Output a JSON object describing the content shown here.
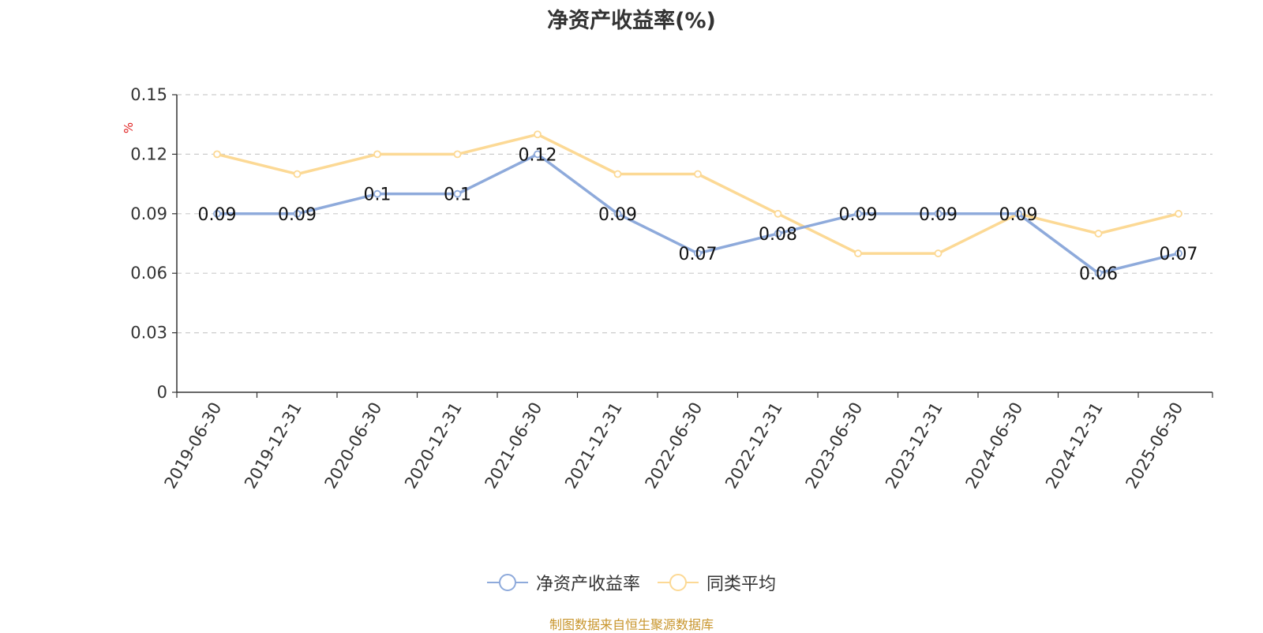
{
  "chart_data": {
    "type": "line",
    "title": "净资产收益率(%)",
    "ylabel": "%",
    "categories": [
      "2019-06-30",
      "2019-12-31",
      "2020-06-30",
      "2020-12-31",
      "2021-06-30",
      "2021-12-31",
      "2022-06-30",
      "2022-12-31",
      "2023-06-30",
      "2023-12-31",
      "2024-06-30",
      "2024-12-31",
      "2025-06-30"
    ],
    "ylim": [
      0,
      0.15
    ],
    "yticks": [
      "0",
      "0.03",
      "0.06",
      "0.09",
      "0.12",
      "0.15"
    ],
    "grid": true,
    "legend_position": "bottom",
    "series": [
      {
        "name": "净资产收益率",
        "color": "#8eaadb",
        "show_labels": true,
        "values": [
          0.09,
          0.09,
          0.1,
          0.1,
          0.12,
          0.09,
          0.07,
          0.08,
          0.09,
          0.09,
          0.09,
          0.06,
          0.07
        ],
        "labels": [
          "0.09",
          "0.09",
          "0.1",
          "0.1",
          "0.12",
          "0.09",
          "0.07",
          "0.08",
          "0.09",
          "0.09",
          "0.09",
          "0.06",
          "0.07"
        ]
      },
      {
        "name": "同类平均",
        "color": "#fcd995",
        "show_labels": false,
        "values": [
          0.12,
          0.11,
          0.12,
          0.12,
          0.13,
          0.11,
          0.11,
          0.09,
          0.07,
          0.07,
          0.09,
          0.08,
          0.09
        ]
      }
    ]
  },
  "source": "制图数据来自恒生聚源数据库"
}
